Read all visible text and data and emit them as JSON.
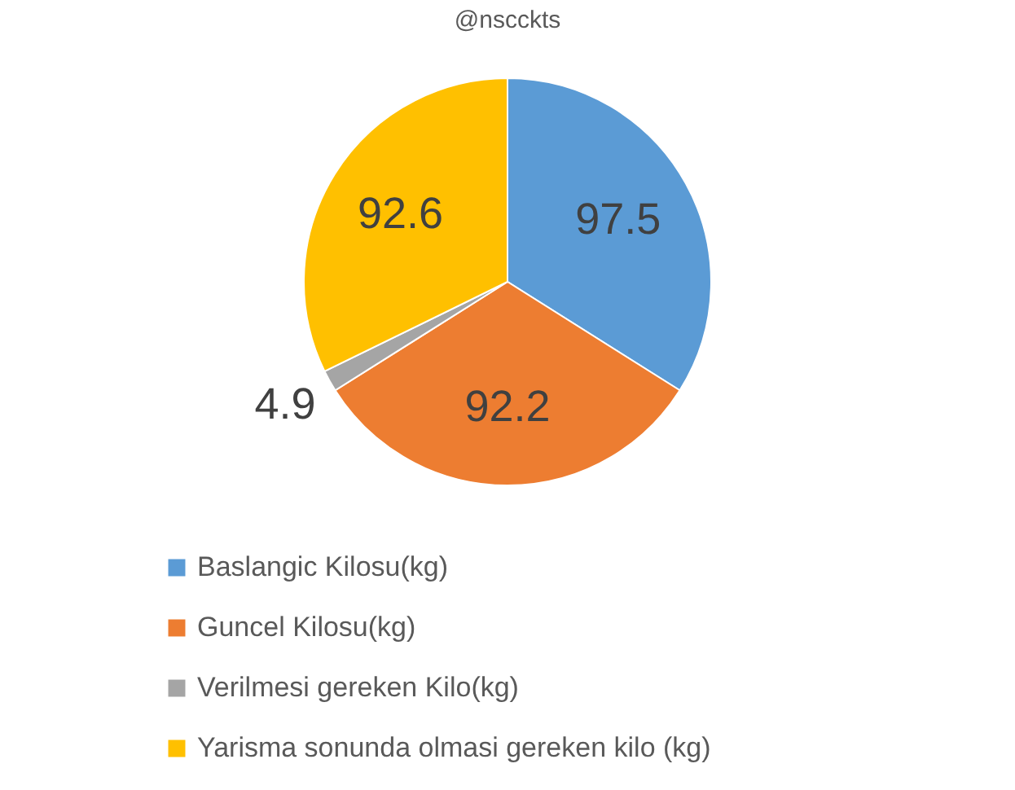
{
  "chart_data": {
    "type": "pie",
    "title": "@nscckts",
    "categories": [
      "Baslangic Kilosu(kg)",
      "Guncel Kilosu(kg)",
      "Verilmesi gereken Kilo(kg)",
      "Yarisma sonunda olmasi gereken kilo (kg)"
    ],
    "values": [
      97.5,
      92.2,
      4.9,
      92.6
    ],
    "colors": [
      "#5b9bd5",
      "#ed7d31",
      "#a5a5a5",
      "#ffc000"
    ],
    "data_labels": true,
    "legend": "bottom"
  }
}
